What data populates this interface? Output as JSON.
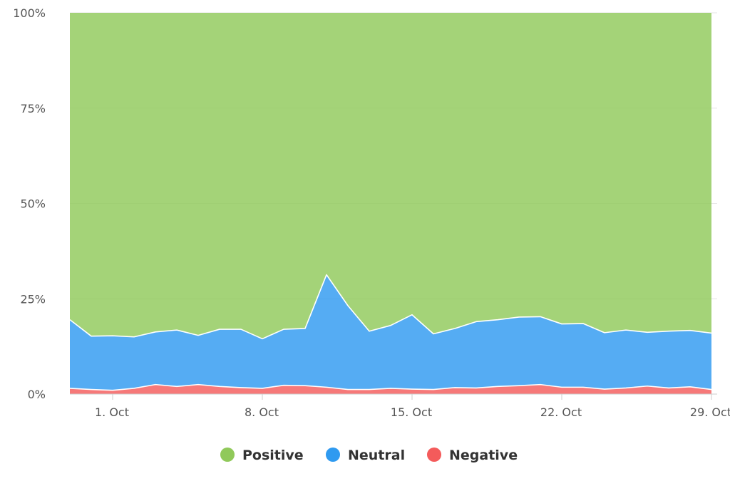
{
  "chart_data": {
    "type": "area",
    "stacking": "percent",
    "x": [
      "2018-09-29",
      "2018-09-30",
      "2018-10-01",
      "2018-10-02",
      "2018-10-03",
      "2018-10-04",
      "2018-10-05",
      "2018-10-06",
      "2018-10-07",
      "2018-10-08",
      "2018-10-09",
      "2018-10-10",
      "2018-10-11",
      "2018-10-12",
      "2018-10-13",
      "2018-10-14",
      "2018-10-15",
      "2018-10-16",
      "2018-10-17",
      "2018-10-18",
      "2018-10-19",
      "2018-10-20",
      "2018-10-21",
      "2018-10-22",
      "2018-10-23",
      "2018-10-24",
      "2018-10-25",
      "2018-10-26",
      "2018-10-27",
      "2018-10-28",
      "2018-10-29"
    ],
    "series": [
      {
        "name": "Negative",
        "color": "#f45b5b",
        "values": [
          1.5,
          1.2,
          1.0,
          1.5,
          2.5,
          2.0,
          2.5,
          2.0,
          1.7,
          1.5,
          2.3,
          2.2,
          1.8,
          1.2,
          1.2,
          1.5,
          1.3,
          1.2,
          1.7,
          1.6,
          2.0,
          2.2,
          2.5,
          1.8,
          1.8,
          1.3,
          1.6,
          2.1,
          1.6,
          1.9,
          1.2
        ]
      },
      {
        "name": "Neutral",
        "color": "#2f9af0",
        "values": [
          18.0,
          14.0,
          14.3,
          13.5,
          13.8,
          14.8,
          12.9,
          15.0,
          15.3,
          13.0,
          14.7,
          15.0,
          29.5,
          22.0,
          15.3,
          16.5,
          19.5,
          14.6,
          15.5,
          17.4,
          17.5,
          18.0,
          17.8,
          16.6,
          16.7,
          14.8,
          15.2,
          14.1,
          14.9,
          14.8,
          14.8
        ]
      },
      {
        "name": "Positive",
        "color": "#90c95a",
        "values": [
          80.5,
          84.8,
          84.7,
          85.0,
          83.7,
          83.2,
          84.6,
          83.0,
          83.0,
          85.5,
          83.0,
          82.8,
          68.7,
          76.8,
          83.5,
          82.0,
          79.2,
          84.2,
          82.8,
          81.0,
          80.5,
          79.8,
          79.7,
          81.6,
          81.5,
          83.9,
          83.2,
          83.8,
          83.5,
          83.3,
          84.0
        ]
      }
    ],
    "x_ticks": [
      {
        "date": "2018-10-01",
        "label": "1. Oct"
      },
      {
        "date": "2018-10-08",
        "label": "8. Oct"
      },
      {
        "date": "2018-10-15",
        "label": "15. Oct"
      },
      {
        "date": "2018-10-22",
        "label": "22. Oct"
      },
      {
        "date": "2018-10-29",
        "label": "29. Oct"
      }
    ],
    "y_ticks": [
      {
        "value": 0,
        "label": "0%"
      },
      {
        "value": 25,
        "label": "25%"
      },
      {
        "value": 50,
        "label": "50%"
      },
      {
        "value": 75,
        "label": "75%"
      },
      {
        "value": 100,
        "label": "100%"
      }
    ],
    "ylim": [
      0,
      100
    ],
    "grid": true,
    "legend": {
      "position": "bottom-center",
      "items": [
        {
          "name": "Positive",
          "color": "#90c95a"
        },
        {
          "name": "Neutral",
          "color": "#2f9af0"
        },
        {
          "name": "Negative",
          "color": "#f45b5b"
        }
      ]
    }
  }
}
